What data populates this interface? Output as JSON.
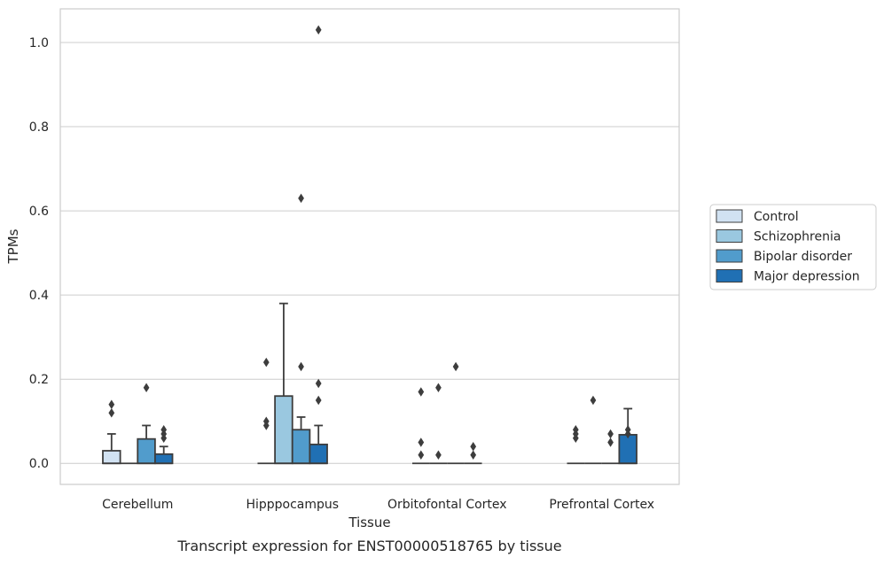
{
  "chart_data": {
    "type": "box",
    "caption": "Transcript expression for ENST00000518765 by tissue",
    "xlabel": "Tissue",
    "ylabel": "TPMs",
    "ylim": [
      -0.05,
      1.08
    ],
    "yticks": [
      0.0,
      0.2,
      0.4,
      0.6,
      0.8,
      1.0
    ],
    "ytick_labels": [
      "0.0",
      "0.2",
      "0.4",
      "0.6",
      "0.8",
      "1.0"
    ],
    "grid": "horizontal",
    "legend_position": "right",
    "categories": [
      "Cerebellum",
      "Hipppocampus",
      "Orbitofontal Cortex",
      "Prefrontal Cortex"
    ],
    "series": [
      {
        "name": "Control",
        "color": "#d1e2f2",
        "boxes": [
          {
            "min": 0.0,
            "q1": 0.0,
            "median": 0.0,
            "q3": 0.03,
            "max": 0.07,
            "outliers": [
              0.12,
              0.14
            ]
          },
          {
            "min": 0.0,
            "q1": 0.0,
            "median": 0.0,
            "q3": 0.0,
            "max": 0.0,
            "outliers": [
              0.09,
              0.1,
              0.24
            ]
          },
          {
            "min": 0.0,
            "q1": 0.0,
            "median": 0.0,
            "q3": 0.0,
            "max": 0.0,
            "outliers": [
              0.02,
              0.05,
              0.17
            ]
          },
          {
            "min": 0.0,
            "q1": 0.0,
            "median": 0.0,
            "q3": 0.0,
            "max": 0.0,
            "outliers": [
              0.06,
              0.07,
              0.08
            ]
          }
        ]
      },
      {
        "name": "Schizophrenia",
        "color": "#9ac8e0",
        "boxes": [
          {
            "min": 0.0,
            "q1": 0.0,
            "median": 0.0,
            "q3": 0.0,
            "max": 0.0,
            "outliers": []
          },
          {
            "min": 0.0,
            "q1": 0.0,
            "median": 0.0,
            "q3": 0.16,
            "max": 0.38,
            "outliers": []
          },
          {
            "min": 0.0,
            "q1": 0.0,
            "median": 0.0,
            "q3": 0.0,
            "max": 0.0,
            "outliers": [
              0.02,
              0.18
            ]
          },
          {
            "min": 0.0,
            "q1": 0.0,
            "median": 0.0,
            "q3": 0.0,
            "max": 0.0,
            "outliers": [
              0.15
            ]
          }
        ]
      },
      {
        "name": "Bipolar disorder",
        "color": "#519ccc",
        "boxes": [
          {
            "min": 0.0,
            "q1": 0.0,
            "median": 0.0,
            "q3": 0.058,
            "max": 0.09,
            "outliers": [
              0.18
            ]
          },
          {
            "min": 0.0,
            "q1": 0.0,
            "median": 0.0,
            "q3": 0.08,
            "max": 0.11,
            "outliers": [
              0.23,
              0.63
            ]
          },
          {
            "min": 0.0,
            "q1": 0.0,
            "median": 0.0,
            "q3": 0.0,
            "max": 0.0,
            "outliers": [
              0.23
            ]
          },
          {
            "min": 0.0,
            "q1": 0.0,
            "median": 0.0,
            "q3": 0.0,
            "max": 0.0,
            "outliers": [
              0.05,
              0.07
            ]
          }
        ]
      },
      {
        "name": "Major depression",
        "color": "#2070b4",
        "boxes": [
          {
            "min": 0.0,
            "q1": 0.0,
            "median": 0.0,
            "q3": 0.022,
            "max": 0.04,
            "outliers": [
              0.06,
              0.07,
              0.08
            ]
          },
          {
            "min": 0.0,
            "q1": 0.0,
            "median": 0.0,
            "q3": 0.045,
            "max": 0.09,
            "outliers": [
              0.15,
              0.19,
              1.03
            ]
          },
          {
            "min": 0.0,
            "q1": 0.0,
            "median": 0.0,
            "q3": 0.0,
            "max": 0.0,
            "outliers": [
              0.02,
              0.04
            ]
          },
          {
            "min": 0.0,
            "q1": 0.0,
            "median": 0.0,
            "q3": 0.068,
            "max": 0.13,
            "outliers": [
              0.07,
              0.08
            ]
          }
        ]
      }
    ]
  }
}
